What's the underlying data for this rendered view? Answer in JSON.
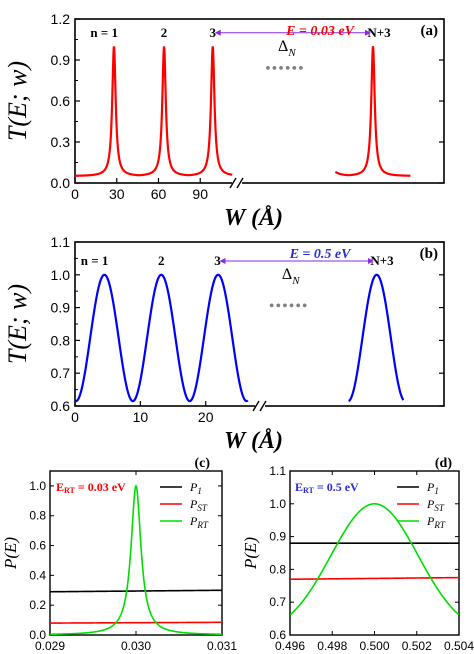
{
  "chart_data": [
    {
      "id": "a",
      "type": "line",
      "panel_label": "(a)",
      "ylabel": "T(E; w)",
      "xlabel": "W (Å)",
      "annotation": "E = 0.03 eV",
      "annotation_color": "#ff0000",
      "series_color": "#ff0000",
      "ylim": [
        0,
        1.2
      ],
      "yticks": [
        "0.0",
        "0.3",
        "0.6",
        "0.9",
        "1.2"
      ],
      "xlim": [
        0,
        115
      ],
      "xticks": [
        "0",
        "30",
        "60",
        "90"
      ],
      "peaks_x": [
        28,
        64,
        99
      ],
      "peak_labels": [
        "n = 1",
        "2",
        "3"
      ],
      "far_peak_label": "N+3",
      "delta_label": "Δ",
      "delta_sub": "N",
      "dots": "••••••",
      "baseline": 0.05,
      "peak_height": 1.0,
      "peak_halfwidth": 1.5
    },
    {
      "id": "b",
      "type": "line",
      "panel_label": "(b)",
      "ylabel": "T(E; w)",
      "xlabel": "W (Å)",
      "annotation": "E = 0.5 eV",
      "annotation_color": "#2b2bd6",
      "series_color": "#0000ff",
      "ylim": [
        0.6,
        1.1
      ],
      "yticks": [
        "0.6",
        "0.7",
        "0.8",
        "0.9",
        "1.0",
        "1.1"
      ],
      "xlim": [
        0,
        28
      ],
      "xticks": [
        "0",
        "10",
        "20"
      ],
      "peaks_x": [
        4.5,
        13.2,
        21.8
      ],
      "peak_labels": [
        "n = 1",
        "2",
        "3"
      ],
      "far_peak_label": "N+3",
      "delta_label": "Δ",
      "delta_sub": "N",
      "dots": "••••••",
      "min_value": 0.615,
      "max_value": 1.0,
      "period": 8.7
    },
    {
      "id": "c",
      "type": "line",
      "panel_label": "(c)",
      "annotation_prefix": "E",
      "annotation_sub": "RT",
      "annotation_suffix": " = 0.03 eV",
      "annotation_color": "#ff0000",
      "ylabel": "P(E)",
      "xlabel": "Energy (eV)",
      "xlim": [
        0.029,
        0.031
      ],
      "xticks": [
        "0.029",
        "0.030",
        "0.031"
      ],
      "ylim": [
        0,
        1.1
      ],
      "yticks": [
        "0.0",
        "0.2",
        "0.4",
        "0.6",
        "0.8",
        "1.0"
      ],
      "legend_position": "top-right",
      "series": [
        {
          "name": "P",
          "name_sub": "1",
          "color": "#000000",
          "start": 0.29,
          "end": 0.3
        },
        {
          "name": "P",
          "name_sub": "ST",
          "color": "#ff0000",
          "start": 0.08,
          "end": 0.085
        },
        {
          "name": "P",
          "name_sub": "RT",
          "color": "#00dd00",
          "center": 0.03,
          "peak": 1.0,
          "halfwidth": 7e-05
        }
      ]
    },
    {
      "id": "d",
      "type": "line",
      "panel_label": "(d)",
      "annotation_prefix": "E",
      "annotation_sub": "RT",
      "annotation_suffix": " = 0.5 eV",
      "annotation_color": "#2b2bd6",
      "ylabel": "P(E)",
      "xlabel": "Energy (eV)",
      "xlim": [
        0.496,
        0.504
      ],
      "xticks": [
        "0.496",
        "0.498",
        "0.500",
        "0.502",
        "0.504"
      ],
      "ylim": [
        0.6,
        1.1
      ],
      "yticks": [
        "0.6",
        "0.7",
        "0.8",
        "0.9",
        "1.0",
        "1.1"
      ],
      "legend_position": "top-right",
      "series": [
        {
          "name": "P",
          "name_sub": "1",
          "color": "#000000",
          "start": 0.88,
          "end": 0.88
        },
        {
          "name": "P",
          "name_sub": "ST",
          "color": "#ff0000",
          "start": 0.77,
          "end": 0.775
        },
        {
          "name": "P",
          "name_sub": "RT",
          "color": "#00dd00",
          "center": 0.5,
          "peak": 1.0,
          "base": 0.6,
          "halfwidth": 0.00175
        }
      ]
    }
  ]
}
